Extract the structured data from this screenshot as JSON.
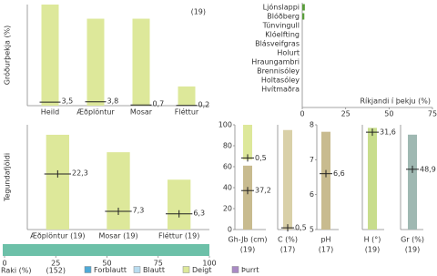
{
  "chart_data": [
    {
      "type": "bar",
      "ylabel": "Gróðurþekja (%)",
      "annotation": "(19)",
      "categories": [
        "Heild",
        "Æðplöntur",
        "Mosar",
        "Fléttur"
      ],
      "values": [
        100,
        86,
        86,
        19
      ],
      "color": "#dde89a",
      "medians": [
        3.5,
        3.8,
        0.7,
        0.2
      ],
      "median_labels": [
        "3,5",
        "3,8",
        "0,7",
        "0,2"
      ],
      "marker": "line",
      "ylim": [
        0,
        100
      ]
    },
    {
      "type": "barh",
      "xlabel": "Ríkjandi í þekju (%)",
      "categories": [
        "Ljónslappi",
        "Blóðberg",
        "Túnvingull",
        "Klóelfting",
        "Blásveifgras",
        "Holurt",
        "Hraungambri",
        "Brennisóley",
        "Holtasóley",
        "Hvítmaðra"
      ],
      "values": [
        1.5,
        1.2,
        0,
        0,
        0,
        0,
        0,
        0,
        0,
        0
      ],
      "color": "#5a9e3c",
      "xlim": [
        0,
        75
      ],
      "xticks": [
        0,
        25,
        50,
        75
      ]
    },
    {
      "type": "bar",
      "ylabel": "Tegundafjöldi",
      "categories": [
        "Æðplöntur (19)",
        "Mosar (19)",
        "Fléttur (19)"
      ],
      "values": [
        38,
        31,
        20
      ],
      "color": "#dde89a",
      "medians": [
        22.3,
        7.3,
        6.3
      ],
      "median_labels": [
        "22,3",
        "7,3",
        "6,3"
      ],
      "marker": "cross",
      "ylim": [
        0,
        42
      ]
    },
    {
      "type": "strip",
      "xlabel": "Raki (%)",
      "annotation": "(152)",
      "values": [
        100
      ],
      "color": "#6cc0a8",
      "xlim": [
        0,
        100
      ],
      "xticks": [
        0,
        25,
        50,
        75,
        100
      ],
      "legend": [
        {
          "name": "Forblautt",
          "color": "#4fa9d6"
        },
        {
          "name": "Blautt",
          "color": "#b9dcef"
        },
        {
          "name": "Deigt",
          "color": "#dde89a"
        },
        {
          "name": "Þurrt",
          "color": "#a98ac4"
        }
      ]
    },
    {
      "type": "range",
      "xlabel": "Gh-Jb (cm)",
      "count": "(19)",
      "ylim": [
        0,
        100
      ],
      "yticks": [
        0,
        20,
        40,
        60,
        80,
        100
      ],
      "y2lim": [
        -20,
        10
      ],
      "segments": [
        {
          "values": [
            0,
            61
          ],
          "median": 37.2,
          "median_label": "37,2",
          "color": "#c8bb8f"
        },
        {
          "axis": "y2",
          "values": [
            0,
            10
          ],
          "median": 0.5,
          "median_label": "0,5",
          "color": "#dde89a"
        }
      ]
    },
    {
      "type": "range",
      "xlabel": "C (%)",
      "count": "(17)",
      "ylim": [
        0,
        30
      ],
      "segments": [
        {
          "values": [
            0,
            28.5
          ],
          "median": 0.5,
          "median_label": "0,5",
          "color": "#d9d0a8"
        }
      ]
    },
    {
      "type": "range",
      "xlabel": "pH",
      "count": "(17)",
      "ylim": [
        5,
        8
      ],
      "yticks": [
        5,
        6,
        7,
        8
      ],
      "segments": [
        {
          "values": [
            5,
            7.8
          ],
          "median": 6.6,
          "median_label": "6,6",
          "color": "#c8bb8f"
        }
      ]
    },
    {
      "type": "range",
      "xlabel": "H (°)",
      "count": "(19)",
      "ylim": [
        0,
        34
      ],
      "segments": [
        {
          "values": [
            0,
            33
          ],
          "median": 31.6,
          "median_label": "31,6",
          "color": "#c8dd8c"
        }
      ]
    },
    {
      "type": "range",
      "xlabel": "Gr (%)",
      "count": "(19)",
      "ylim": [
        0,
        85
      ],
      "segments": [
        {
          "values": [
            0,
            77
          ],
          "median": 48.9,
          "median_label": "48,9",
          "color": "#9fb8b2"
        }
      ]
    }
  ]
}
